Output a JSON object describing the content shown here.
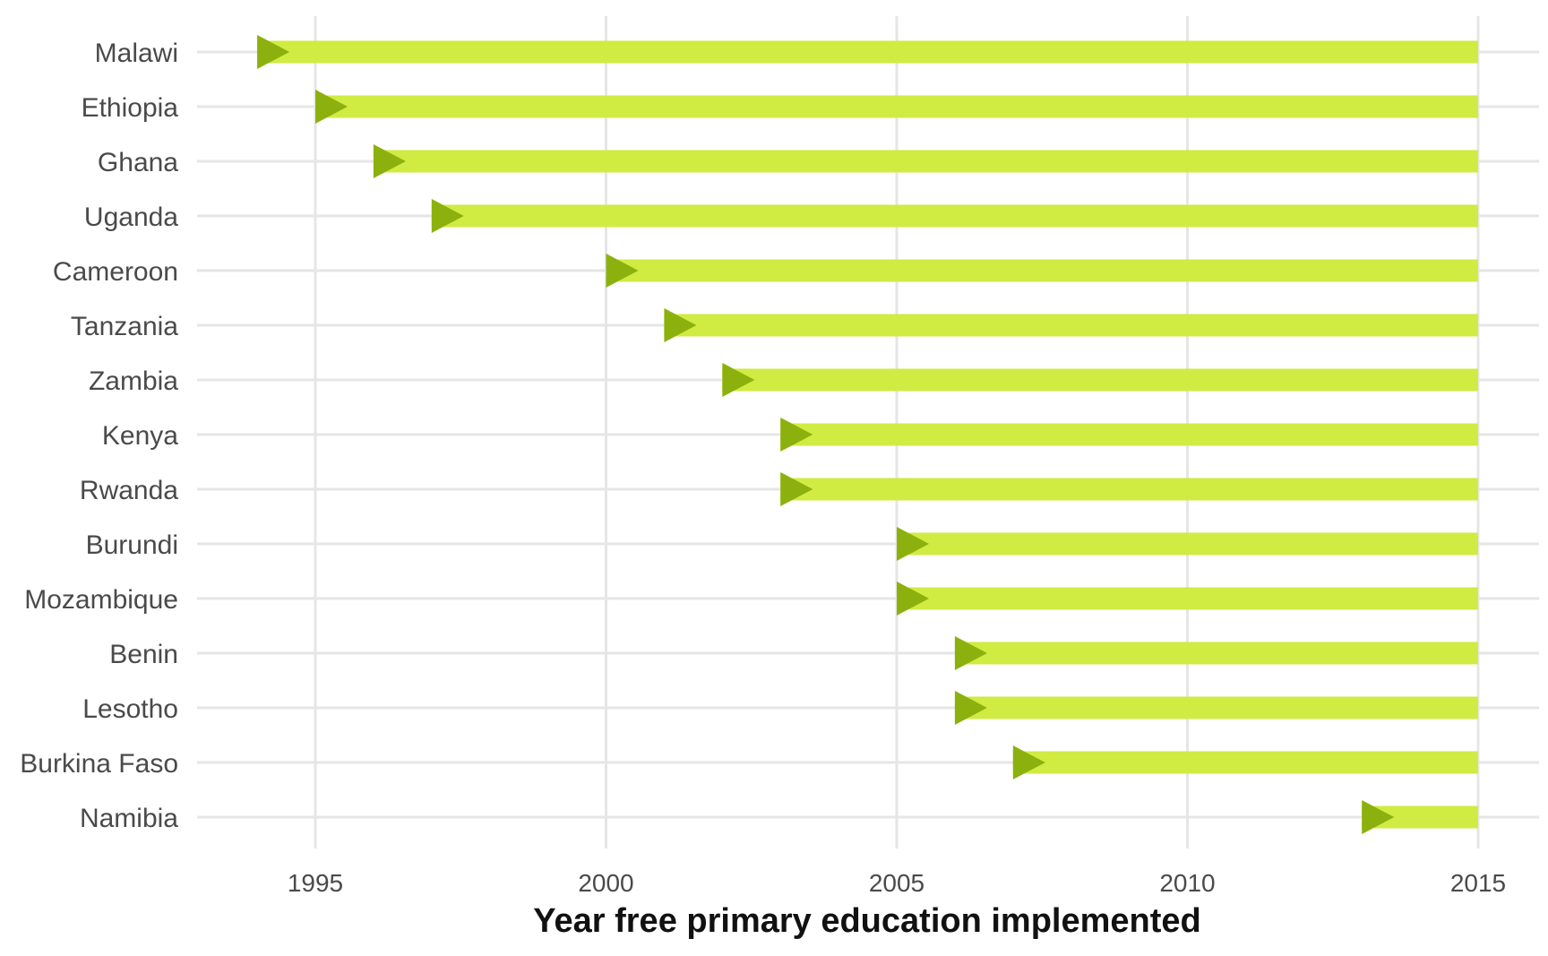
{
  "chart_data": {
    "type": "bar",
    "orientation": "horizontal",
    "xlabel": "Year free primary education implemented",
    "ylabel": "",
    "xlim": [
      1993,
      2015.5
    ],
    "xticks": [
      "1995",
      "2000",
      "2005",
      "2010",
      "2015"
    ],
    "bar_end": 2015,
    "grid": true,
    "legend": "none",
    "colors": {
      "bar": "#d0eb42",
      "marker": "#8cb10e",
      "grid": "#e6e6e6"
    },
    "categories": [
      "Malawi",
      "Ethiopia",
      "Ghana",
      "Uganda",
      "Cameroon",
      "Tanzania",
      "Zambia",
      "Kenya",
      "Rwanda",
      "Burundi",
      "Mozambique",
      "Benin",
      "Lesotho",
      "Burkina Faso",
      "Namibia"
    ],
    "values": [
      1994,
      1995,
      1996,
      1997,
      2000,
      2001,
      2002,
      2003,
      2003,
      2005,
      2005,
      2006,
      2006,
      2007,
      2013
    ]
  }
}
